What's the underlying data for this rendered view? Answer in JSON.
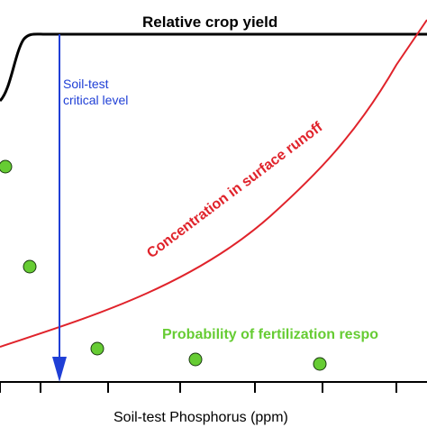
{
  "diagram": {
    "title": "Relative crop yield",
    "xlabel": "Soil-test Phosphorus (ppm)",
    "critical_label_line1": "Soil-test",
    "critical_label_line2": "critical level",
    "runoff_label": "Concentration in surface runoff",
    "response_label": "Probability of fertilization respo",
    "colors": {
      "yield": "#000000",
      "critical_arrow": "#1f3fd6",
      "critical_text": "#1f3fd6",
      "runoff": "#e0232b",
      "response_points": "#66cc33",
      "response_text": "#66cc33",
      "axis": "#000000"
    }
  }
}
